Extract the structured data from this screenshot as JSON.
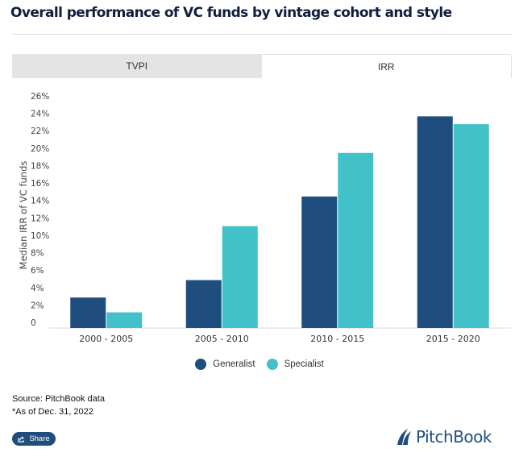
{
  "header": {
    "title": "Overall performance of VC funds by vintage cohort and style"
  },
  "tabs": [
    {
      "label": "TVPI",
      "active": false
    },
    {
      "label": "IRR",
      "active": true
    }
  ],
  "chart_data": {
    "type": "bar",
    "title": "Overall performance of VC funds by vintage cohort and style",
    "xlabel": "",
    "ylabel": "Median IRR of VC funds",
    "categories": [
      "2000 - 2005",
      "2005 - 2010",
      "2010 - 2015",
      "2015 - 2020"
    ],
    "series": [
      {
        "name": "Generalist",
        "color": "#1f4e7e",
        "values": [
          3.5,
          5.5,
          15.1,
          24.3
        ]
      },
      {
        "name": "Specialist",
        "color": "#43c1c8",
        "values": [
          1.8,
          11.7,
          20.1,
          23.4
        ]
      }
    ],
    "ylim": [
      0,
      26
    ],
    "yticks": [
      0,
      2,
      4,
      6,
      8,
      10,
      12,
      14,
      16,
      18,
      20,
      22,
      24,
      26
    ],
    "ytick_labels": [
      "0",
      "2%",
      "4%",
      "6%",
      "8%",
      "10%",
      "12%",
      "14%",
      "16%",
      "18%",
      "20%",
      "22%",
      "24%",
      "26%"
    ],
    "grid": false,
    "legend_position": "bottom-center"
  },
  "legend": [
    {
      "label": "Generalist",
      "color": "#1f4e7e"
    },
    {
      "label": "Specialist",
      "color": "#43c1c8"
    }
  ],
  "footer": {
    "source": "Source: PitchBook data",
    "note": "*As of Dec. 31, 2022",
    "share_label": "Share",
    "logo_text": "PitchBook"
  }
}
